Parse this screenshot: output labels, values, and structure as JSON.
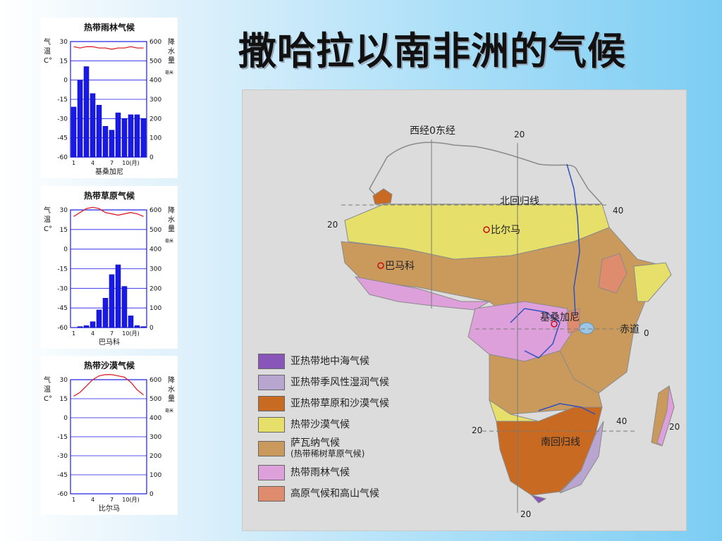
{
  "slide": {
    "title": "撒哈拉以南非洲的气候"
  },
  "climate_charts": [
    {
      "title": "热带雨林气候",
      "station": "基桑加尼",
      "temp_label": "气\n温\nC°",
      "precip_label": "降\n水\n量",
      "precip_unit": "毫米",
      "temp_ticks": [
        "30",
        "15",
        "0",
        "-15",
        "-30",
        "-45",
        "-60"
      ],
      "precip_ticks": [
        "600",
        "500",
        "400",
        "300",
        "200",
        "100",
        "0"
      ],
      "month_ticks": [
        "1",
        "4",
        "7",
        "10(月)"
      ],
      "precip_mm": [
        260,
        400,
        470,
        330,
        270,
        160,
        140,
        230,
        200,
        220,
        220,
        200
      ],
      "temp_c": [
        26,
        25,
        26,
        26,
        25,
        25,
        24,
        25,
        25,
        26,
        25,
        25
      ],
      "bar_color": "#1a1ae6",
      "line_color": "#e0202a"
    },
    {
      "title": "热带草原气候",
      "station": "巴马科",
      "temp_label": "气\n温\nC°",
      "precip_label": "降\n水\n量",
      "precip_unit": "毫米",
      "temp_ticks": [
        "30",
        "15",
        "0",
        "-15",
        "-30",
        "-45",
        "-60"
      ],
      "precip_ticks": [
        "600",
        "500",
        "400",
        "300",
        "200",
        "100",
        "0"
      ],
      "month_ticks": [
        "1",
        "4",
        "7",
        "10(月)"
      ],
      "precip_mm": [
        0,
        5,
        10,
        30,
        90,
        150,
        270,
        320,
        210,
        60,
        10,
        5
      ],
      "temp_c": [
        25,
        28,
        31,
        32,
        31,
        28,
        27,
        26,
        27,
        28,
        27,
        25
      ],
      "bar_color": "#1a1ae6",
      "line_color": "#e0202a"
    },
    {
      "title": "热带沙漠气候",
      "station": "比尔马",
      "temp_label": "气\n温\nC°",
      "precip_label": "降\n水\n量",
      "precip_unit": "毫米",
      "temp_ticks": [
        "30",
        "15",
        "0",
        "-15",
        "-30",
        "-45",
        "-60"
      ],
      "precip_ticks": [
        "600",
        "500",
        "400",
        "300",
        "200",
        "100",
        "0"
      ],
      "month_ticks": [
        "1",
        "4",
        "7",
        "10(月)"
      ],
      "precip_mm": [
        0,
        0,
        0,
        0,
        0,
        0,
        0,
        0,
        0,
        0,
        0,
        0
      ],
      "temp_c": [
        17,
        20,
        25,
        30,
        33,
        34,
        34,
        33,
        32,
        28,
        22,
        18
      ],
      "bar_color": "#1a1ae6",
      "line_color": "#e0202a"
    }
  ],
  "map": {
    "labels": {
      "prime_meridian": "西经0东经",
      "top_20": "20",
      "tropic_cancer": "北回归线",
      "lat_20_left": "20",
      "top_40": "40",
      "bilma": "比尔马",
      "bamako": "巴马科",
      "kisangani": "基桑加尼",
      "equator": "赤道",
      "equator_0": "0",
      "bottom_20_left": "20",
      "bottom_40_right": "40",
      "far_right_20": "20",
      "tropic_capricorn": "南回归线",
      "bottom_20": "20"
    },
    "legend": [
      {
        "label": "亚热带地中海气候",
        "sub": "",
        "color": "#8a55b8"
      },
      {
        "label": "亚热带季风性湿润气候",
        "sub": "",
        "color": "#b8a5d0"
      },
      {
        "label": "亚热带草原和沙漠气候",
        "sub": "",
        "color": "#c86a22"
      },
      {
        "label": "热带沙漠气候",
        "sub": "",
        "color": "#e6e06a"
      },
      {
        "label": "萨瓦纳气候",
        "sub": "(热带稀树草原气候)",
        "color": "#c99a5c"
      },
      {
        "label": "热带雨林气候",
        "sub": "",
        "color": "#dda0da"
      },
      {
        "label": "高原气候和高山气候",
        "sub": "",
        "color": "#de8b6e"
      }
    ],
    "colors": {
      "desert": "#e6e06a",
      "savanna": "#c99a5c",
      "rainforest": "#dda0da",
      "subtropical_steppe": "#c86a22",
      "highland": "#de8b6e",
      "mediterranean": "#8a55b8",
      "humid_subtropical": "#b8a5d0",
      "water": "#3050c0"
    }
  }
}
